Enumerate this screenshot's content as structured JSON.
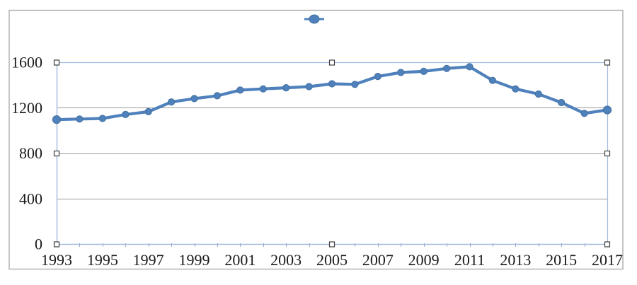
{
  "chart_data": {
    "type": "line",
    "title": "",
    "xlabel": "",
    "ylabel": "",
    "x": [
      1993,
      1994,
      1995,
      1996,
      1997,
      1998,
      1999,
      2000,
      2001,
      2002,
      2003,
      2004,
      2005,
      2006,
      2007,
      2008,
      2009,
      2010,
      2011,
      2012,
      2013,
      2014,
      2015,
      2016,
      2017
    ],
    "series": [
      {
        "name": "",
        "values": [
          1095,
          1100,
          1105,
          1140,
          1165,
          1250,
          1280,
          1305,
          1355,
          1365,
          1375,
          1385,
          1410,
          1405,
          1475,
          1510,
          1520,
          1545,
          1560,
          1440,
          1365,
          1320,
          1245,
          1150,
          1180
        ]
      }
    ],
    "x_tick_labels": [
      "1993",
      "1995",
      "1997",
      "1999",
      "2001",
      "2003",
      "2005",
      "2007",
      "2009",
      "2011",
      "2013",
      "2015",
      "2017"
    ],
    "y_ticks": [
      0,
      400,
      800,
      1200,
      1600
    ],
    "y_tick_labels": [
      "0",
      "400",
      "800",
      "1200",
      "1600"
    ],
    "ylim": [
      0,
      1600
    ],
    "grid": "horizontal",
    "legend": {
      "position": "top-center",
      "marker_only": true,
      "entries": [
        ""
      ]
    },
    "selection": {
      "selected": true,
      "handle_count": 8
    },
    "colors": {
      "series_line": "#4F81BD",
      "marker_fill": "#4F81BD",
      "marker_edge": "#44719F",
      "gridline": "#9A9A9A",
      "selection_border": "#A3B9DC",
      "chart_border": "#A6A6A6",
      "handle_fill": "#FFFFFF",
      "handle_edge": "#3F3F3F",
      "tick": "#93A9C9",
      "text": "#1A1A1A",
      "background": "#FFFFFF"
    }
  }
}
